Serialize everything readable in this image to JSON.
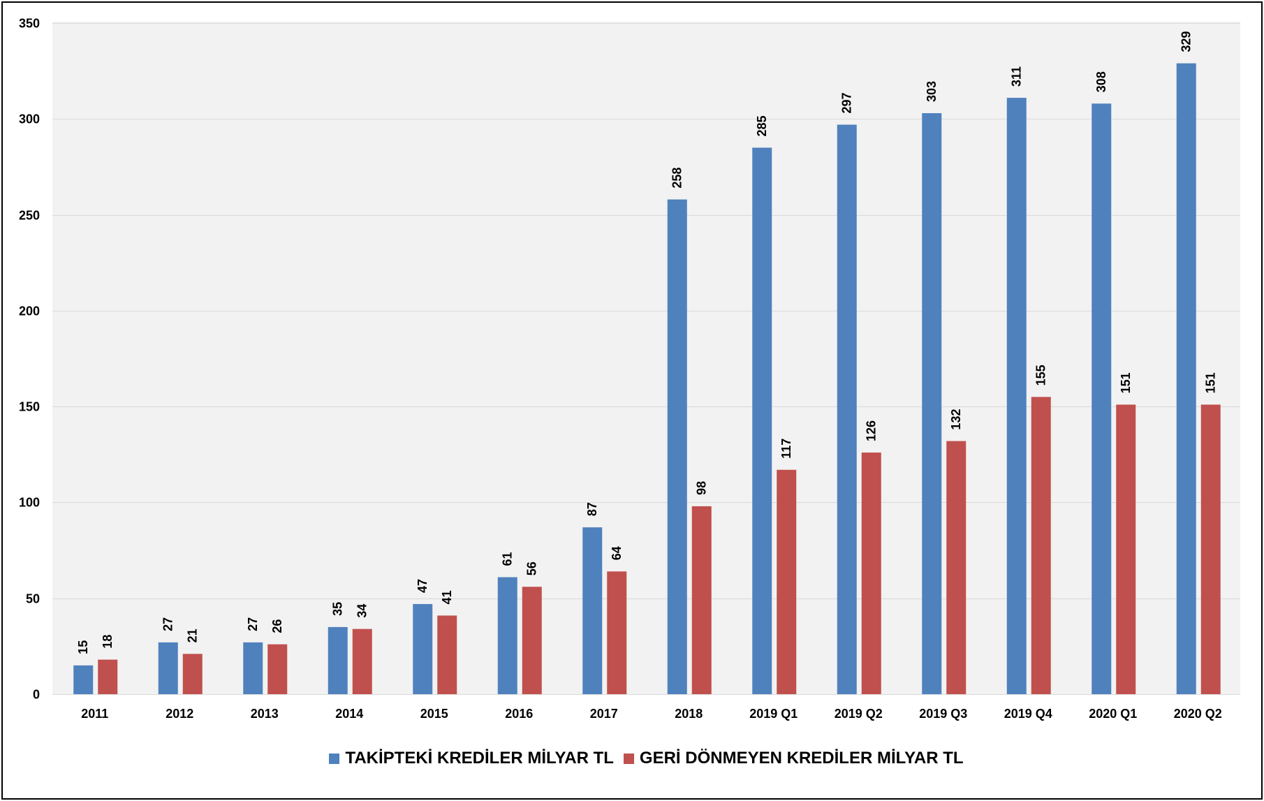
{
  "chart_data": {
    "type": "bar",
    "categories": [
      "2011",
      "2012",
      "2013",
      "2014",
      "2015",
      "2016",
      "2017",
      "2018",
      "2019 Q1",
      "2019 Q2",
      "2019 Q3",
      "2019 Q4",
      "2020 Q1",
      "2020 Q2"
    ],
    "series": [
      {
        "name": "TAKİPTEKİ KREDİLER MİLYAR TL",
        "color": "#4F81BD",
        "values": [
          15,
          27,
          27,
          35,
          47,
          61,
          87,
          258,
          285,
          297,
          303,
          311,
          308,
          329
        ]
      },
      {
        "name": "GERİ DÖNMEYEN KREDİLER MİLYAR TL",
        "color": "#C0504D",
        "values": [
          18,
          21,
          26,
          34,
          41,
          56,
          64,
          98,
          117,
          126,
          132,
          155,
          151,
          151
        ]
      }
    ],
    "ylim": [
      0,
      350
    ],
    "yticks": [
      0,
      50,
      100,
      150,
      200,
      250,
      300,
      350
    ],
    "grid": true,
    "legend": "bottom"
  },
  "colors": {
    "plot_background": "#F2F2F2",
    "gridline": "#D9D9D9"
  }
}
